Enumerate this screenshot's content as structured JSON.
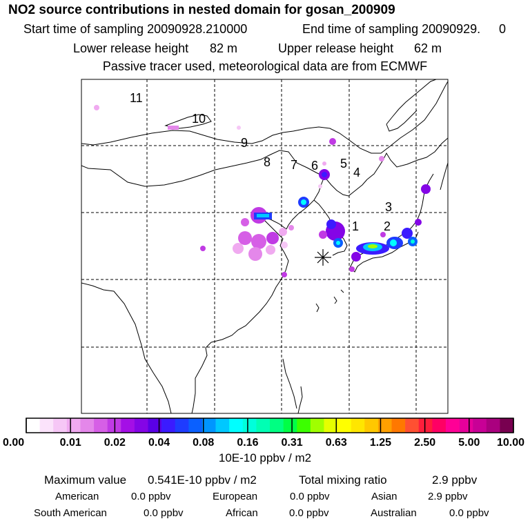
{
  "header": {
    "title": "NO2 source contributions in nested domain for gosan_200909",
    "start_label": "Start time of sampling 20090928.210000",
    "end_label": "End time of sampling 20090929.",
    "end_value": "0",
    "lower_label": "Lower release height",
    "lower_value": "82 m",
    "upper_label": "Upper release height",
    "upper_value": "62 m",
    "tracer_note": "Passive tracer used, meteorological data are from ECMWF"
  },
  "map": {
    "domain_labels": [
      "1",
      "2",
      "3",
      "4",
      "5",
      "6",
      "7",
      "8",
      "9",
      "10",
      "11"
    ],
    "receptor_marker": "asterisk-icon"
  },
  "colorbar": {
    "tick_labels": [
      "0.00",
      "0.01",
      "0.02",
      "0.04",
      "0.08",
      "0.16",
      "0.31",
      "0.63",
      "1.25",
      "2.50",
      "5.00",
      "10.00"
    ],
    "colors": [
      "#ffffff",
      "#fbe3fb",
      "#f6c7f6",
      "#f0aaf0",
      "#e487ea",
      "#d65fe6",
      "#c03ae4",
      "#a40fe6",
      "#8405e6",
      "#5a00e6",
      "#3b1bff",
      "#1e3cff",
      "#0a60ff",
      "#0095ff",
      "#00c8ff",
      "#00ffff",
      "#00ffdc",
      "#00ffb4",
      "#00ff82",
      "#00ff46",
      "#3cff00",
      "#a0ff00",
      "#e6ff00",
      "#ffff00",
      "#ffe600",
      "#ffc800",
      "#ffa000",
      "#ff7800",
      "#ff5032",
      "#ff1e3c",
      "#ff0064",
      "#ff0096",
      "#e6009b",
      "#c80096",
      "#aa007f",
      "#780050"
    ],
    "unit": "10E-10 ppbv / m2"
  },
  "summary": {
    "max_label": "Maximum value",
    "max_value": "0.541E-10 ppbv / m2",
    "total_label": "Total mixing ratio",
    "total_value": "2.9 ppbv",
    "regions": [
      {
        "name": "American",
        "value": "0.0 ppbv"
      },
      {
        "name": "European",
        "value": "0.0 ppbv"
      },
      {
        "name": "Asian",
        "value": "2.9 ppbv"
      },
      {
        "name": "South American",
        "value": "0.0 ppbv"
      },
      {
        "name": "African",
        "value": "0.0 ppbv"
      },
      {
        "name": "Australian",
        "value": "0.0 ppbv"
      }
    ]
  }
}
